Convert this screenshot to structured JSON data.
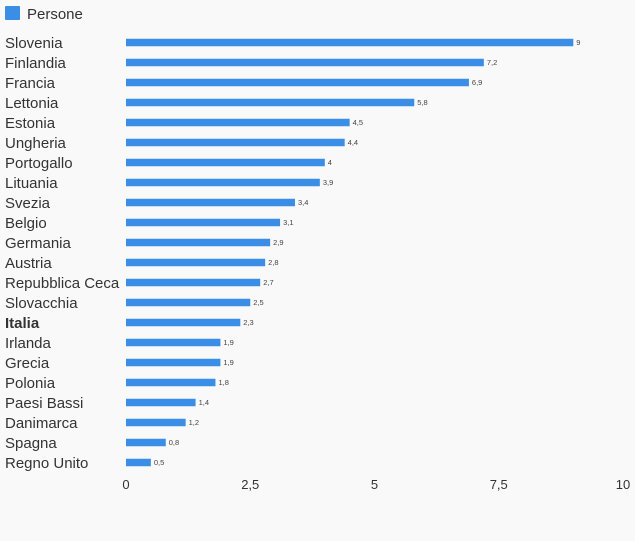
{
  "chart_data": {
    "type": "bar",
    "orientation": "horizontal",
    "categories": [
      "Slovenia",
      "Finlandia",
      "Francia",
      "Lettonia",
      "Estonia",
      "Ungheria",
      "Portogallo",
      "Lituania",
      "Svezia",
      "Belgio",
      "Germania",
      "Austria",
      "Repubblica Ceca",
      "Slovacchia",
      "Italia",
      "Irlanda",
      "Grecia",
      "Polonia",
      "Paesi Bassi",
      "Danimarca",
      "Spagna",
      "Regno Unito"
    ],
    "highlighted_category": "Italia",
    "series": [
      {
        "name": "Persone",
        "color": "#3a8ee6",
        "values": [
          9,
          7.2,
          6.9,
          5.8,
          4.5,
          4.4,
          4,
          3.9,
          3.4,
          3.1,
          2.9,
          2.8,
          2.7,
          2.5,
          2.3,
          1.9,
          1.9,
          1.8,
          1.4,
          1.2,
          0.8,
          0.5
        ],
        "value_labels": [
          "9",
          "7,2",
          "6,9",
          "5,8",
          "4,5",
          "4,4",
          "4",
          "3,9",
          "3,4",
          "3,1",
          "2,9",
          "2,8",
          "2,7",
          "2,5",
          "2,3",
          "1,9",
          "1,9",
          "1,8",
          "1,4",
          "1,2",
          "0,8",
          "0,5"
        ]
      }
    ],
    "xlim": [
      0,
      10
    ],
    "x_ticks": [
      0,
      2.5,
      5,
      7.5,
      10
    ],
    "x_tick_labels": [
      "0",
      "2,5",
      "5",
      "7,5",
      "10"
    ],
    "grid": false,
    "legend": "top-left"
  }
}
